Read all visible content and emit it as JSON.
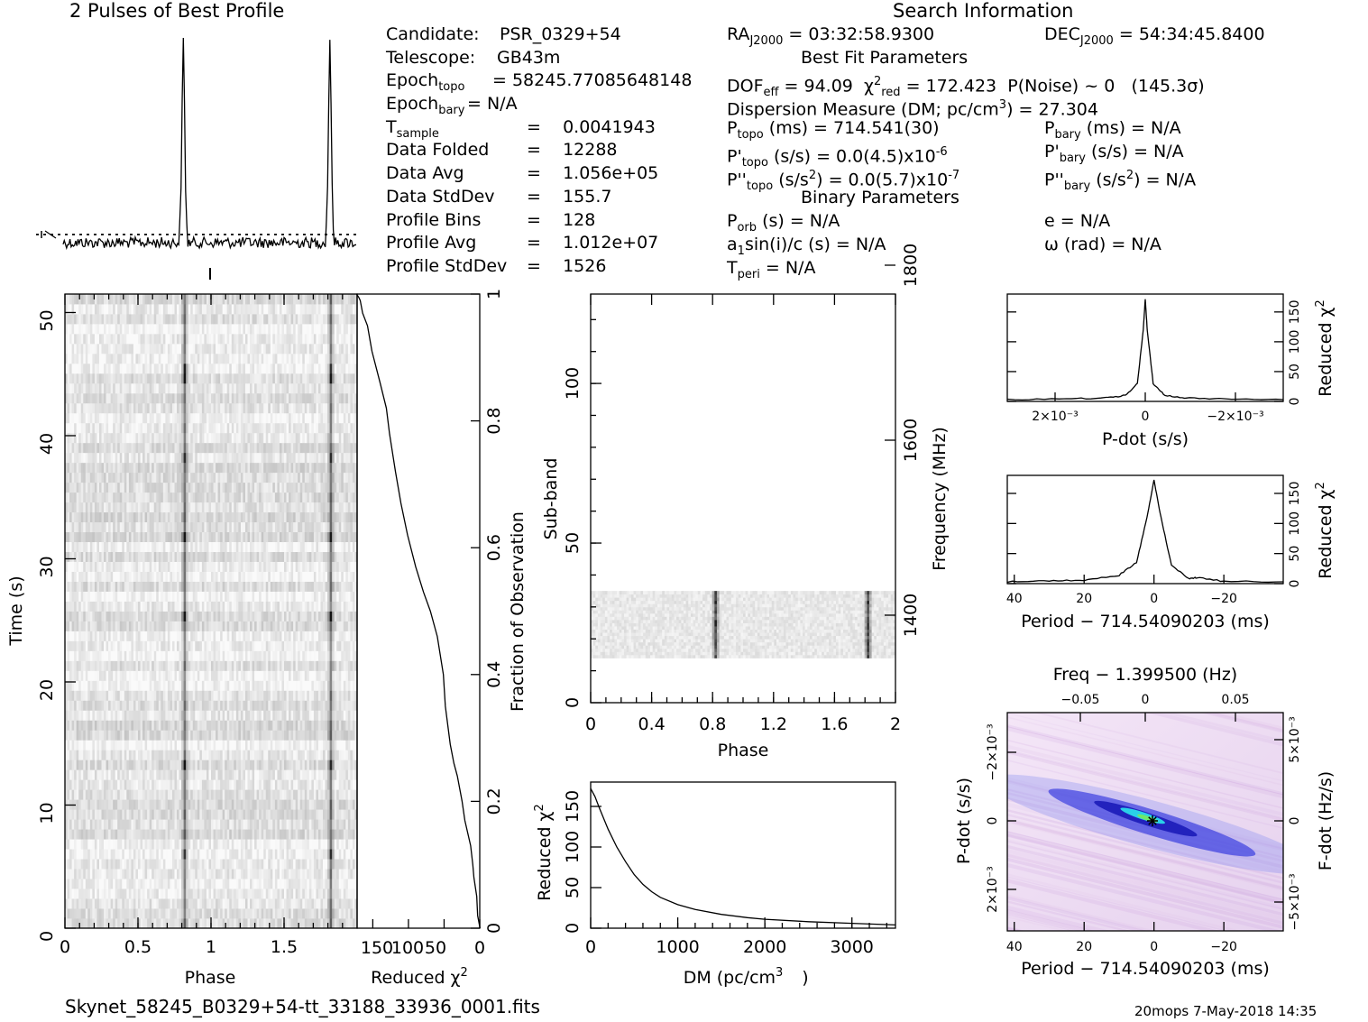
{
  "profile_title": "2 Pulses of Best Profile",
  "search_title": "Search Information",
  "info": {
    "col1": [
      {
        "label": "Candidate:",
        "value": "PSR_0329+54"
      },
      {
        "label": "Telescope:",
        "value": "GB43m"
      },
      {
        "label": "Epoch",
        "sub": "topo",
        "value": "= 58245.77085648148"
      },
      {
        "label": "Epoch",
        "sub": "bary",
        "value": "= N/A"
      },
      {
        "label": "T",
        "sub": "sample",
        "value": "=    0.0041943"
      },
      {
        "label": "Data Folded",
        "value": "=    12288"
      },
      {
        "label": "Data Avg",
        "value": "=    1.056e+05"
      },
      {
        "label": "Data StdDev",
        "value": "=    155.7"
      },
      {
        "label": "Profile Bins",
        "value": "=    128"
      },
      {
        "label": "Profile Avg",
        "value": "=    1.012e+07"
      },
      {
        "label": "Profile StdDev",
        "value": "=    1526"
      }
    ],
    "ra": "RA",
    "ra_sub": "J2000",
    "ra_value": "= 03:32:58.9300",
    "dec": "DEC",
    "dec_sub": "J2000",
    "dec_value": "= 54:34:45.8400",
    "best_fit_title": "Best Fit Parameters",
    "dof": "DOF",
    "dof_sub": "eff",
    "dof_value": "= 94.09",
    "chi": "χ",
    "chi_sup": "2",
    "chi_sub": "red",
    "chi_value": "= 172.423",
    "pnoise": "P(Noise) ~ 0",
    "sigma": "(145.3σ)",
    "dm_line": "Dispersion Measure (DM; pc/cm",
    "dm_sup": "3",
    "dm_value": ") = 27.304",
    "ptopo": "P",
    "ptopo_sub": "topo",
    "ptopo_value": "(ms) =  714.541(30)",
    "pbary": "P",
    "pbary_sub": "bary",
    "pbary_value": "(ms) = N/A",
    "pdtopo": "P'",
    "pdtopo_sub": "topo",
    "pdtopo_value": "(s/s) = 0.0(4.5)x10",
    "pdtopo_exp": "-6",
    "pdbary": "P'",
    "pdbary_sub": "bary",
    "pdbary_value": "(s/s) = N/A",
    "pddtopo": "P''",
    "pddtopo_sub": "topo",
    "pddtopo_value": "(s/s",
    "pddtopo_sup": "2",
    "pddtopo_value2": ") = 0.0(5.7)x10",
    "pddtopo_exp": "-7",
    "pddbary": "P''",
    "pddbary_sub": "bary",
    "pddbary_value": "(s/s",
    "pddbary_sup": "2",
    "pddbary_value2": ") = N/A",
    "binary_title": "Binary Parameters",
    "porb": "P",
    "porb_sub": "orb",
    "porb_value": "(s) = N/A",
    "e_value": "e = N/A",
    "asini": "a",
    "asini_sub": "1",
    "asini_value": "sin(i)/c (s) = N/A",
    "omega_value": "ω (rad) = N/A",
    "tperi": "T",
    "tperi_sub": "peri",
    "tperi_value": "= N/A"
  },
  "footer_file": "Skynet_58245_B0329+54-tt_33188_33936_0001.fits",
  "footer_right": "20mops  7-May-2018 14:35",
  "chart_data": [
    {
      "type": "line",
      "name": "profile",
      "title": "2 Pulses of Best Profile",
      "pulse_phases": [
        0.82,
        1.82
      ],
      "peak_relative_height": 1.0,
      "baseline_relative_height": 0.0
    },
    {
      "type": "heatmap",
      "name": "time-phase",
      "xlabel": "Phase",
      "ylabel": "Time (s)",
      "xticks": [
        "0",
        "0.5",
        "1",
        "1.5"
      ],
      "yticks": [
        "0",
        "10",
        "20",
        "30",
        "40",
        "50"
      ],
      "xlim": [
        0,
        2
      ],
      "ylim": [
        0,
        51.5
      ],
      "pulse_phases": [
        0.82,
        1.82
      ],
      "bright_times": [
        6,
        13,
        25.5,
        32,
        38,
        45
      ]
    },
    {
      "type": "line",
      "name": "reduced-chi2-vs-time",
      "xlabel": "Reduced χ",
      "xlabel_sup": "2",
      "ylabel": "Fraction of Observation",
      "xticks": [
        "150",
        "100",
        "50",
        "0"
      ],
      "yticks": [
        "0",
        "0.2",
        "0.4",
        "0.6",
        "0.8",
        "1"
      ],
      "xlim": [
        172,
        0
      ],
      "x": [
        0,
        2,
        5,
        7,
        10,
        14,
        20,
        26,
        32,
        36,
        42,
        48,
        52,
        60,
        70,
        78,
        90,
        100,
        110,
        118,
        126,
        130,
        140,
        150,
        158,
        164,
        168,
        170,
        172
      ],
      "y": [
        0.0,
        0.02,
        0.05,
        0.08,
        0.1,
        0.13,
        0.17,
        0.2,
        0.24,
        0.26,
        0.29,
        0.35,
        0.4,
        0.46,
        0.5,
        0.53,
        0.57,
        0.62,
        0.67,
        0.72,
        0.78,
        0.82,
        0.86,
        0.91,
        0.95,
        0.97,
        0.99,
        0.995,
        1.0
      ]
    },
    {
      "type": "heatmap",
      "name": "subband-phase",
      "xlabel": "Phase",
      "ylabel": "Sub-band",
      "y2label": "Frequency (MHz)",
      "xticks": [
        "0",
        "0.4",
        "0.8",
        "1.2",
        "1.6",
        "2"
      ],
      "yticks": [
        "0",
        "50",
        "100"
      ],
      "y2ticks": [
        "1400",
        "1600",
        "1800"
      ],
      "xlim": [
        0,
        2
      ],
      "ylim": [
        0,
        128
      ],
      "y2lim": [
        1300,
        1800
      ],
      "filled_subbands": [
        14,
        35
      ],
      "pulse_phases": [
        0.82,
        1.82
      ]
    },
    {
      "type": "line",
      "name": "dm-curve",
      "xlabel": "DM (pc/cm",
      "xlabel_sup": "3",
      "ylabel": "Reduced χ",
      "ylabel_sup": "2",
      "xticks": [
        "0",
        "1000",
        "2000",
        "3000"
      ],
      "yticks": [
        "0",
        "50",
        "100",
        "150"
      ],
      "xlim": [
        0,
        3500
      ],
      "ylim": [
        0,
        180
      ],
      "x": [
        0,
        50,
        100,
        200,
        300,
        400,
        500,
        600,
        700,
        800,
        1000,
        1200,
        1500,
        1800,
        2000,
        2500,
        3000,
        3500
      ],
      "y": [
        172,
        162,
        148,
        122,
        100,
        82,
        66,
        54,
        45,
        38,
        29,
        23,
        17,
        13,
        11,
        8,
        6,
        4
      ]
    },
    {
      "type": "line",
      "name": "pdot-curve",
      "xlabel": "P-dot (s/s)",
      "y2label": "Reduced χ",
      "y2label_sup": "2",
      "xticks": [
        "2×10⁻³",
        "0",
        "−2×10⁻³"
      ],
      "yticks": [
        "0",
        "50",
        "100",
        "150"
      ],
      "xlim": [
        0.0035,
        -0.0035
      ],
      "ylim": [
        0,
        180
      ],
      "x": [
        0.0035,
        0.002,
        0.001,
        0.0005,
        0.0002,
        5e-05,
        0,
        -5e-05,
        -0.0002,
        -0.0005,
        -0.001,
        -0.002,
        -0.0035
      ],
      "y": [
        3,
        4,
        6,
        10,
        30,
        120,
        172,
        120,
        30,
        10,
        6,
        4,
        3
      ]
    },
    {
      "type": "line",
      "name": "period-curve",
      "xlabel": "Period − 714.54090203 (ms)",
      "y2label": "Reduced χ",
      "y2label_sup": "2",
      "xticks": [
        "40",
        "20",
        "0",
        "−20"
      ],
      "yticks": [
        "0",
        "50",
        "100",
        "150"
      ],
      "xlim": [
        42,
        -37
      ],
      "ylim": [
        0,
        180
      ],
      "x": [
        42,
        30,
        20,
        10,
        5,
        2,
        0,
        -2,
        -5,
        -10,
        -12,
        -20,
        -37
      ],
      "y": [
        3,
        4,
        6,
        14,
        35,
        110,
        172,
        110,
        30,
        8,
        10,
        4,
        3
      ]
    },
    {
      "type": "heatmap",
      "name": "period-pdot",
      "xlabel": "Period − 714.54090203 (ms)",
      "ylabel": "P-dot (s/s)",
      "x2label": "Freq − 1.399500 (Hz)",
      "y2label": "F-dot (Hz/s)",
      "xticks": [
        "40",
        "20",
        "0",
        "−20"
      ],
      "x2ticks": [
        "−0.05",
        "0",
        "0.05"
      ],
      "yticks": [
        "−2×10⁻³",
        "0",
        "2×10⁻³"
      ],
      "y2ticks": [
        "5×10⁻³",
        "0",
        "−5×10⁻³"
      ],
      "best_point": [
        0,
        0
      ]
    }
  ]
}
